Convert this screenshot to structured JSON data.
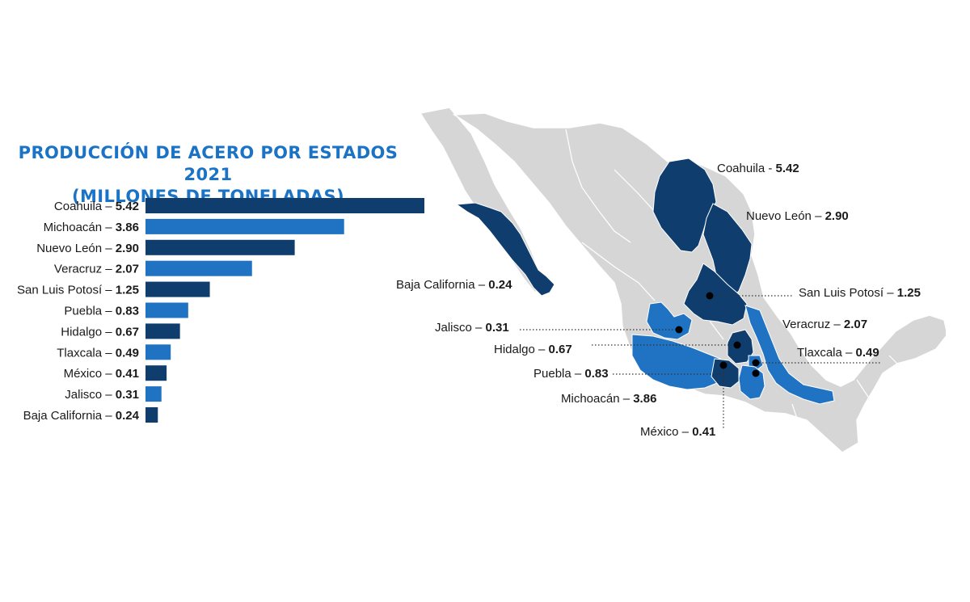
{
  "title_line1": "PRODUCCIÓN DE ACERO POR ESTADOS 2021",
  "title_line2": "(MILLONES DE TONELADAS)",
  "colors": {
    "dark": "#0f3e6e",
    "light": "#1f73c2",
    "map_gray": "#d6d6d6",
    "title": "#1a73c5"
  },
  "chart_data": {
    "type": "bar",
    "orientation": "horizontal",
    "title": "PRODUCCIÓN DE ACERO POR ESTADOS 2021 (MILLONES DE TONELADAS)",
    "categories": [
      "Coahuila",
      "Michoacán",
      "Nuevo León",
      "Veracruz",
      "San Luis Potosí",
      "Puebla",
      "Hidalgo",
      "Tlaxcala",
      "México",
      "Jalisco",
      "Baja California"
    ],
    "values": [
      5.42,
      3.86,
      2.9,
      2.07,
      1.25,
      0.83,
      0.67,
      0.49,
      0.41,
      0.31,
      0.24
    ],
    "value_labels": [
      "5.42",
      "3.86",
      "2.90",
      "2.07",
      "1.25",
      "0.83",
      "0.67",
      "0.49",
      "0.41",
      "0.31",
      "0.24"
    ],
    "bar_colors": [
      "dark",
      "light",
      "dark",
      "light",
      "dark",
      "light",
      "dark",
      "light",
      "dark",
      "light",
      "dark"
    ],
    "grid": false,
    "legend": "none"
  },
  "map_labels": [
    {
      "name": "Coahuila",
      "value": "5.42",
      "sep": " - "
    },
    {
      "name": "Nuevo León",
      "value": "2.90",
      "sep": " – "
    },
    {
      "name": "Baja California",
      "value": "0.24",
      "sep": " – "
    },
    {
      "name": "San Luis Potosí",
      "value": "1.25",
      "sep": " – "
    },
    {
      "name": "Jalisco",
      "value": "0.31",
      "sep": " – "
    },
    {
      "name": "Veracruz",
      "value": "2.07",
      "sep": " – "
    },
    {
      "name": "Hidalgo",
      "value": "0.67",
      "sep": " – "
    },
    {
      "name": "Tlaxcala",
      "value": "0.49",
      "sep": " – "
    },
    {
      "name": "Puebla",
      "value": "0.83",
      "sep": " – "
    },
    {
      "name": "Michoacán",
      "value": "3.86",
      "sep": " – "
    },
    {
      "name": "México",
      "value": "0.41",
      "sep": " – "
    }
  ]
}
